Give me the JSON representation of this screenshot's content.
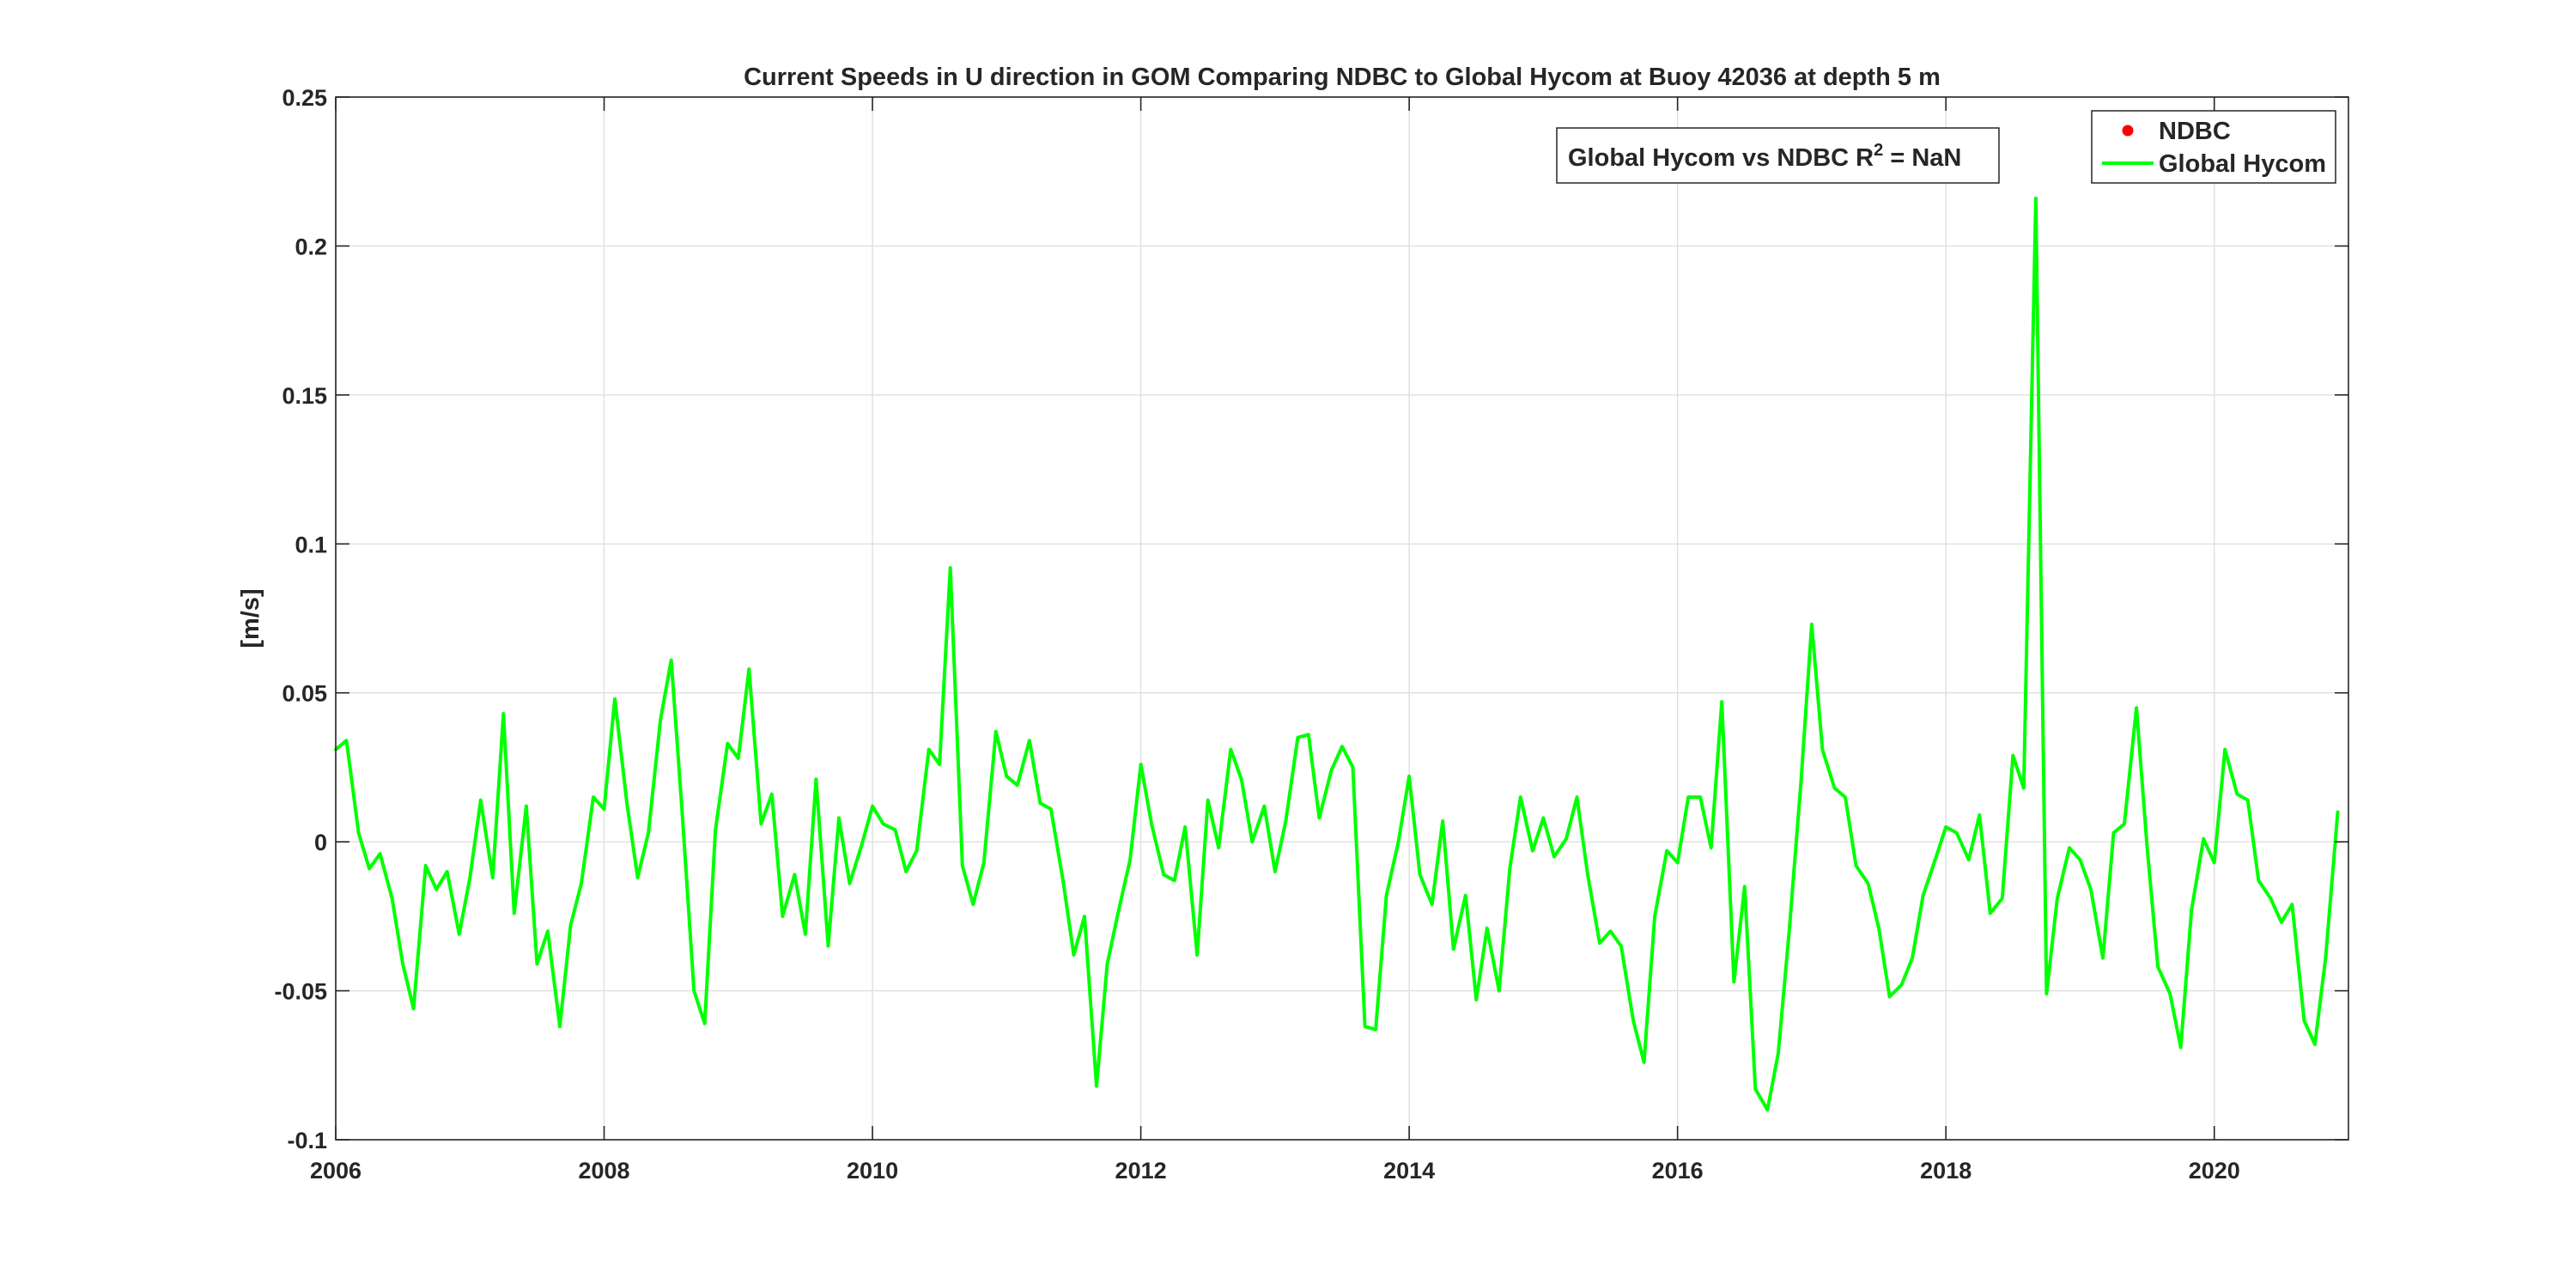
{
  "chart_data": {
    "type": "line",
    "title": "Current Speeds in U direction in GOM Comparing NDBC to Global Hycom at Buoy  42036  at depth  5 m",
    "xlabel": "",
    "ylabel": "[m/s]",
    "xlim": [
      2006,
      2021
    ],
    "ylim": [
      -0.1,
      0.25
    ],
    "xticks": [
      2006,
      2008,
      2010,
      2012,
      2014,
      2016,
      2018,
      2020
    ],
    "xtick_labels": [
      "2006",
      "2008",
      "2010",
      "2012",
      "2014",
      "2016",
      "2018",
      "2020"
    ],
    "yticks": [
      -0.1,
      -0.05,
      0,
      0.05,
      0.1,
      0.15,
      0.2,
      0.25
    ],
    "ytick_labels": [
      "-0.1",
      "-0.05",
      "0",
      "0.05",
      "0.1",
      "0.15",
      "0.2",
      "0.25"
    ],
    "grid": true,
    "legend_position": "top-right",
    "annotation": {
      "prefix": "Global Hycom vs NDBC R",
      "superscript": "2",
      "suffix": " = NaN"
    },
    "series": [
      {
        "name": "NDBC",
        "marker": "dot",
        "color": "#ff0000",
        "x": [],
        "y": []
      },
      {
        "name": "Global Hycom",
        "marker": "line",
        "color": "#00ff00",
        "x": [
          2006.0,
          2006.08,
          2006.17,
          2006.25,
          2006.33,
          2006.42,
          2006.5,
          2006.58,
          2006.67,
          2006.75,
          2006.83,
          2006.92,
          2007.0,
          2007.08,
          2007.17,
          2007.25,
          2007.33,
          2007.42,
          2007.5,
          2007.58,
          2007.67,
          2007.75,
          2007.83,
          2007.92,
          2008.0,
          2008.08,
          2008.17,
          2008.25,
          2008.33,
          2008.42,
          2008.5,
          2008.58,
          2008.67,
          2008.75,
          2008.83,
          2008.92,
          2009.0,
          2009.08,
          2009.17,
          2009.25,
          2009.33,
          2009.42,
          2009.5,
          2009.58,
          2009.67,
          2009.75,
          2009.83,
          2009.92,
          2010.0,
          2010.08,
          2010.17,
          2010.25,
          2010.33,
          2010.42,
          2010.5,
          2010.58,
          2010.67,
          2010.75,
          2010.83,
          2010.92,
          2011.0,
          2011.08,
          2011.17,
          2011.25,
          2011.33,
          2011.42,
          2011.5,
          2011.58,
          2011.67,
          2011.75,
          2011.83,
          2011.92,
          2012.0,
          2012.08,
          2012.17,
          2012.25,
          2012.33,
          2012.42,
          2012.5,
          2012.58,
          2012.67,
          2012.75,
          2012.83,
          2012.92,
          2013.0,
          2013.08,
          2013.17,
          2013.25,
          2013.33,
          2013.42,
          2013.5,
          2013.58,
          2013.67,
          2013.75,
          2013.83,
          2013.92,
          2014.0,
          2014.08,
          2014.17,
          2014.25,
          2014.33,
          2014.42,
          2014.5,
          2014.58,
          2014.67,
          2014.75,
          2014.83,
          2014.92,
          2015.0,
          2015.08,
          2015.17,
          2015.25,
          2015.33,
          2015.42,
          2015.5,
          2015.58,
          2015.67,
          2015.75,
          2015.83,
          2015.92,
          2016.0,
          2016.08,
          2016.17,
          2016.25,
          2016.33,
          2016.42,
          2016.5,
          2016.58,
          2016.67,
          2016.75,
          2016.83,
          2016.92,
          2017.0,
          2017.08,
          2017.17,
          2017.25,
          2017.33,
          2017.42,
          2017.5,
          2017.58,
          2017.67,
          2017.75,
          2017.83,
          2017.92,
          2018.0,
          2018.08,
          2018.17,
          2018.25,
          2018.33,
          2018.42,
          2018.5,
          2018.58,
          2018.67,
          2018.75,
          2018.83,
          2018.92,
          2019.0,
          2019.08,
          2019.17,
          2019.25,
          2019.33,
          2019.42,
          2019.5,
          2019.58,
          2019.67,
          2019.75,
          2019.83,
          2019.92,
          2020.0,
          2020.08,
          2020.17,
          2020.25,
          2020.33,
          2020.42,
          2020.5,
          2020.58,
          2020.67,
          2020.75,
          2020.83,
          2020.92
        ],
        "y": [
          0.031,
          0.034,
          0.003,
          -0.009,
          -0.004,
          -0.019,
          -0.041,
          -0.056,
          -0.008,
          -0.016,
          -0.01,
          -0.031,
          -0.012,
          0.014,
          -0.012,
          0.043,
          -0.024,
          0.012,
          -0.041,
          -0.03,
          -0.062,
          -0.028,
          -0.014,
          0.015,
          0.011,
          0.048,
          0.013,
          -0.012,
          0.003,
          0.041,
          0.061,
          0.011,
          -0.05,
          -0.061,
          0.004,
          0.033,
          0.028,
          0.058,
          0.006,
          0.016,
          -0.025,
          -0.011,
          -0.031,
          0.021,
          -0.035,
          0.008,
          -0.014,
          -0.001,
          0.012,
          0.006,
          0.004,
          -0.01,
          -0.003,
          0.031,
          0.026,
          0.092,
          -0.008,
          -0.021,
          -0.007,
          0.037,
          0.022,
          0.019,
          0.034,
          0.013,
          0.011,
          -0.013,
          -0.038,
          -0.025,
          -0.082,
          -0.041,
          -0.024,
          -0.006,
          0.026,
          0.006,
          -0.011,
          -0.013,
          0.005,
          -0.038,
          0.014,
          -0.002,
          0.031,
          0.021,
          -0.0,
          0.012,
          -0.01,
          0.007,
          0.035,
          0.036,
          0.008,
          0.024,
          0.032,
          0.025,
          -0.062,
          -0.063,
          -0.018,
          -0.0,
          0.022,
          -0.011,
          -0.021,
          0.007,
          -0.036,
          -0.018,
          -0.053,
          -0.029,
          -0.05,
          -0.009,
          0.015,
          -0.003,
          0.008,
          -0.005,
          0.001,
          0.015,
          -0.011,
          -0.034,
          -0.03,
          -0.035,
          -0.06,
          -0.074,
          -0.025,
          -0.003,
          -0.007,
          0.015,
          0.015,
          -0.002,
          0.047,
          -0.047,
          -0.015,
          -0.083,
          -0.09,
          -0.071,
          -0.031,
          0.02,
          0.073,
          0.031,
          0.018,
          0.015,
          -0.008,
          -0.014,
          -0.029,
          -0.052,
          -0.048,
          -0.039,
          -0.018,
          -0.006,
          0.005,
          0.003,
          -0.006,
          0.009,
          -0.024,
          -0.019,
          0.029,
          0.018,
          0.216,
          -0.051,
          -0.019,
          -0.002,
          -0.006,
          -0.016,
          -0.039,
          0.003,
          0.006,
          0.045,
          -0.002,
          -0.042,
          -0.051,
          -0.069,
          -0.023,
          0.001,
          -0.007,
          0.031,
          0.016,
          0.014,
          -0.013,
          -0.019,
          -0.027,
          -0.021,
          -0.06,
          -0.068,
          -0.039,
          0.01
        ]
      }
    ]
  }
}
